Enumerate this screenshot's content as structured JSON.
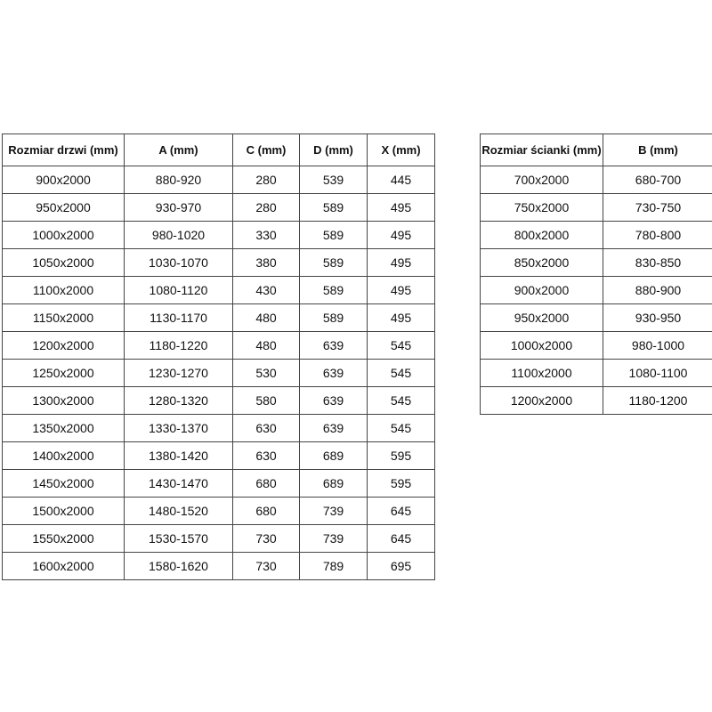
{
  "door_table": {
    "headers": [
      "Rozmiar drzwi (mm)",
      "A (mm)",
      "C (mm)",
      "D (mm)",
      "X (mm)"
    ],
    "rows": [
      [
        "900x2000",
        "880-920",
        "280",
        "539",
        "445"
      ],
      [
        "950x2000",
        "930-970",
        "280",
        "589",
        "495"
      ],
      [
        "1000x2000",
        "980-1020",
        "330",
        "589",
        "495"
      ],
      [
        "1050x2000",
        "1030-1070",
        "380",
        "589",
        "495"
      ],
      [
        "1100x2000",
        "1080-1120",
        "430",
        "589",
        "495"
      ],
      [
        "1150x2000",
        "1130-1170",
        "480",
        "589",
        "495"
      ],
      [
        "1200x2000",
        "1180-1220",
        "480",
        "639",
        "545"
      ],
      [
        "1250x2000",
        "1230-1270",
        "530",
        "639",
        "545"
      ],
      [
        "1300x2000",
        "1280-1320",
        "580",
        "639",
        "545"
      ],
      [
        "1350x2000",
        "1330-1370",
        "630",
        "639",
        "545"
      ],
      [
        "1400x2000",
        "1380-1420",
        "630",
        "689",
        "595"
      ],
      [
        "1450x2000",
        "1430-1470",
        "680",
        "689",
        "595"
      ],
      [
        "1500x2000",
        "1480-1520",
        "680",
        "739",
        "645"
      ],
      [
        "1550x2000",
        "1530-1570",
        "730",
        "739",
        "645"
      ],
      [
        "1600x2000",
        "1580-1620",
        "730",
        "789",
        "695"
      ]
    ]
  },
  "wall_table": {
    "headers": [
      "Rozmiar ścianki (mm)",
      "B (mm)"
    ],
    "rows": [
      [
        "700x2000",
        "680-700"
      ],
      [
        "750x2000",
        "730-750"
      ],
      [
        "800x2000",
        "780-800"
      ],
      [
        "850x2000",
        "830-850"
      ],
      [
        "900x2000",
        "880-900"
      ],
      [
        "950x2000",
        "930-950"
      ],
      [
        "1000x2000",
        "980-1000"
      ],
      [
        "1100x2000",
        "1080-1100"
      ],
      [
        "1200x2000",
        "1180-1200"
      ]
    ]
  }
}
